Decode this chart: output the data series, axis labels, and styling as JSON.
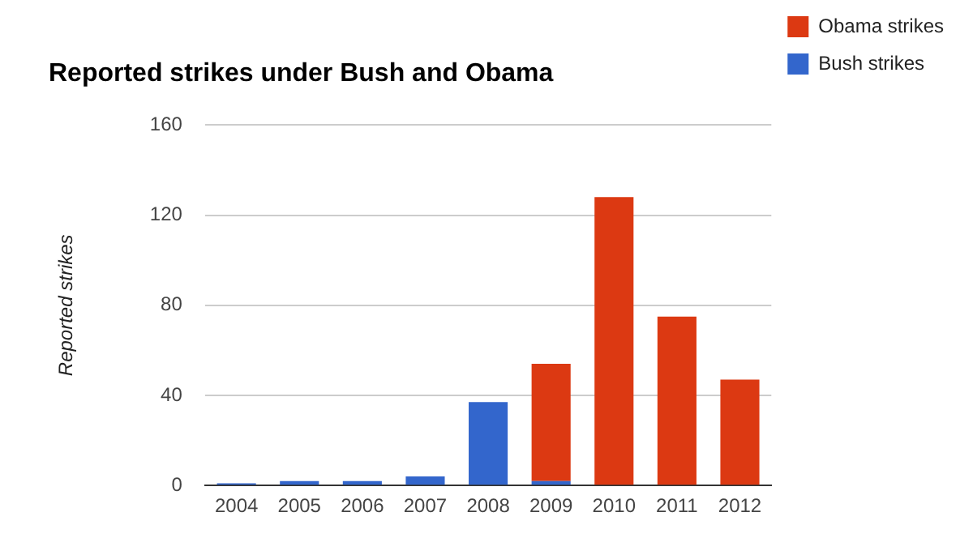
{
  "chart_data": {
    "type": "bar",
    "title": "Reported strikes under Bush and Obama",
    "ylabel": "Reported strikes",
    "categories": [
      "2004",
      "2005",
      "2006",
      "2007",
      "2008",
      "2009",
      "2010",
      "2011",
      "2012"
    ],
    "stacked": true,
    "series": [
      {
        "name": "Bush strikes",
        "color": "#3366cc",
        "values": [
          1,
          2,
          2,
          4,
          37,
          2,
          null,
          null,
          null
        ]
      },
      {
        "name": "Obama strikes",
        "color": "#dc3912",
        "values": [
          null,
          null,
          null,
          null,
          null,
          52,
          128,
          75,
          47
        ]
      }
    ],
    "ylim": [
      0,
      160
    ],
    "yticks": [
      0,
      40,
      80,
      120,
      160
    ],
    "grid": "y",
    "legend": "top right"
  }
}
